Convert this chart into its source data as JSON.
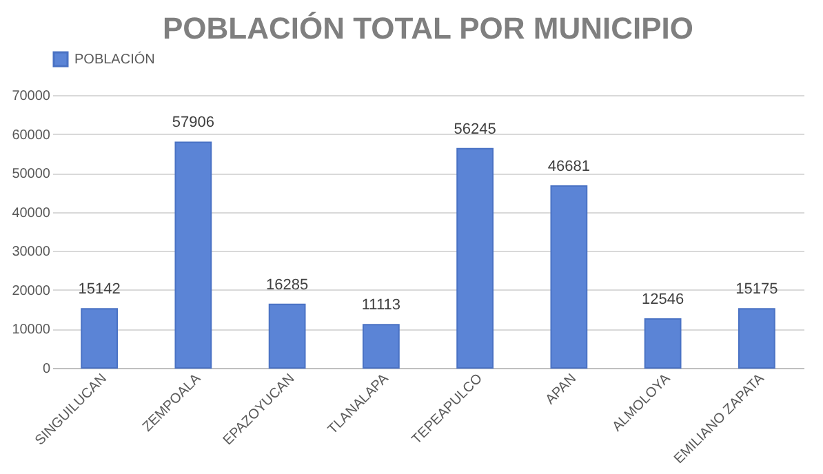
{
  "chart_data": {
    "type": "bar",
    "title": "POBLACIÓN TOTAL POR MUNICIPIO",
    "categories": [
      "SINGUILUCAN",
      "ZEMPOALA",
      "EPAZOYUCAN",
      "TLANALAPA",
      "TEPEAPULCO",
      "APAN",
      "ALMOLOYA",
      "EMILIANO ZAPATA"
    ],
    "series": [
      {
        "name": "POBLACIÓN",
        "color": "#5b84d6",
        "values": [
          15142,
          57906,
          16285,
          11113,
          56245,
          46681,
          12546,
          15175
        ]
      }
    ],
    "ylim": [
      0,
      70000
    ],
    "yticks": [
      0,
      10000,
      20000,
      30000,
      40000,
      50000,
      60000,
      70000
    ],
    "grid": "y",
    "legend": "top",
    "data_labels": true
  }
}
